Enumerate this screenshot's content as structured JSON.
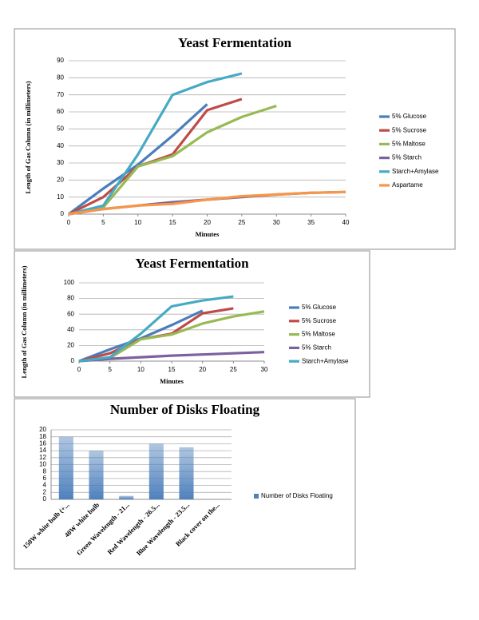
{
  "chart_data": [
    {
      "type": "line",
      "title": "Yeast Fermentation",
      "ylabel": "Length of Gas Column (in millimeters)",
      "xlabel": "Minutes",
      "x": [
        0,
        5,
        10,
        15,
        20,
        25,
        30,
        35,
        40
      ],
      "xlim": [
        0,
        40
      ],
      "xticks": [
        0,
        5,
        10,
        15,
        20,
        25,
        30,
        35,
        40
      ],
      "ylim": [
        0,
        90
      ],
      "yticks": [
        0,
        10,
        20,
        30,
        40,
        50,
        60,
        70,
        80,
        90
      ],
      "grid": true,
      "legend": "right",
      "series": [
        {
          "name": "5% Glucose",
          "color": "#4a7ebb",
          "values": [
            0,
            15,
            29,
            46,
            64.5,
            null,
            null,
            null,
            null
          ]
        },
        {
          "name": "5% Sucrose",
          "color": "#be4b48",
          "values": [
            0,
            10,
            28,
            35,
            61,
            67.5,
            null,
            null,
            null
          ]
        },
        {
          "name": "5% Maltose",
          "color": "#98b954",
          "values": [
            0,
            4,
            28,
            34,
            48,
            57,
            63.5,
            null,
            null
          ]
        },
        {
          "name": "5% Starch",
          "color": "#7d60a0",
          "values": [
            0,
            3,
            5,
            7,
            8.5,
            10,
            11.5,
            12.5,
            13
          ]
        },
        {
          "name": "Starch+Amylase",
          "color": "#46aac5",
          "values": [
            0,
            5,
            35,
            70,
            77.5,
            82.5,
            null,
            null,
            null
          ]
        },
        {
          "name": "Aspartame",
          "color": "#f79646",
          "values": [
            0,
            3,
            5,
            6,
            8.5,
            10.5,
            11.5,
            12.5,
            13
          ]
        }
      ]
    },
    {
      "type": "line",
      "title": "Yeast Fermentation",
      "ylabel": "Length of Gas Column (in millimeters)",
      "xlabel": "Minutes",
      "x": [
        0,
        5,
        10,
        15,
        20,
        25,
        30
      ],
      "xlim": [
        0,
        30
      ],
      "xticks": [
        0,
        5,
        10,
        15,
        20,
        25,
        30
      ],
      "ylim": [
        0,
        100
      ],
      "yticks": [
        0,
        20,
        40,
        60,
        80,
        100
      ],
      "grid": true,
      "legend": "right",
      "series": [
        {
          "name": "5% Glucose",
          "color": "#4a7ebb",
          "values": [
            0,
            15,
            29,
            46,
            64.5,
            null,
            null
          ]
        },
        {
          "name": "5% Sucrose",
          "color": "#be4b48",
          "values": [
            0,
            10,
            28,
            35,
            61,
            67.5,
            null
          ]
        },
        {
          "name": "5% Maltose",
          "color": "#98b954",
          "values": [
            0,
            4,
            28,
            34,
            48,
            57,
            63.5
          ]
        },
        {
          "name": "5% Starch",
          "color": "#7d60a0",
          "values": [
            0,
            3,
            5,
            7,
            8.5,
            10,
            11.5
          ]
        },
        {
          "name": "Starch+Amylase",
          "color": "#46aac5",
          "values": [
            0,
            5,
            35,
            70,
            77.5,
            82.5,
            null
          ]
        }
      ]
    },
    {
      "type": "bar",
      "title": "Number of Disks Floating",
      "categories": [
        "150W white bulb (+...",
        "40W white bulb",
        "Green Wavelength - 21...",
        "Red Wavelength - 26.5...",
        "Blue Wavelength - 23.5...",
        "Black cover on the..."
      ],
      "ylim": [
        0,
        20
      ],
      "yticks": [
        0,
        2,
        4,
        6,
        8,
        10,
        12,
        14,
        16,
        18,
        20
      ],
      "grid": true,
      "legend": "right",
      "series": [
        {
          "name": "Number of Disks Floating",
          "color": "#4f81bd",
          "values": [
            18,
            14,
            1,
            16,
            15,
            0
          ]
        }
      ]
    }
  ]
}
